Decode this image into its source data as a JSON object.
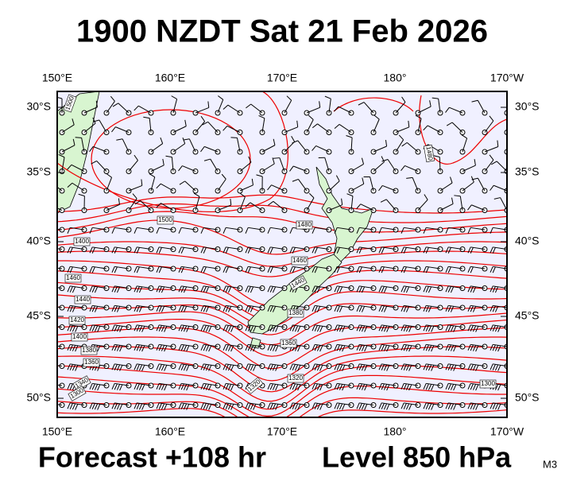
{
  "title": "1900 NZDT Sat 21 Feb 2026",
  "longitude_labels": [
    "150°E",
    "160°E",
    "170°E",
    "180°",
    "170°W"
  ],
  "latitude_labels": [
    "30°S",
    "35°S",
    "40°S",
    "45°S",
    "50°S"
  ],
  "contour_labels": [
    "1500",
    "1500",
    "1480",
    "1480",
    "1400",
    "1460",
    "1440",
    "1460",
    "1440",
    "1420",
    "1400",
    "1380",
    "1380",
    "1360",
    "1360",
    "1340",
    "1320",
    "1300",
    "1300",
    "1320"
  ],
  "footer": {
    "forecast": "Forecast +108 hr",
    "level": "Level 850 hPa",
    "model": "M3"
  }
}
